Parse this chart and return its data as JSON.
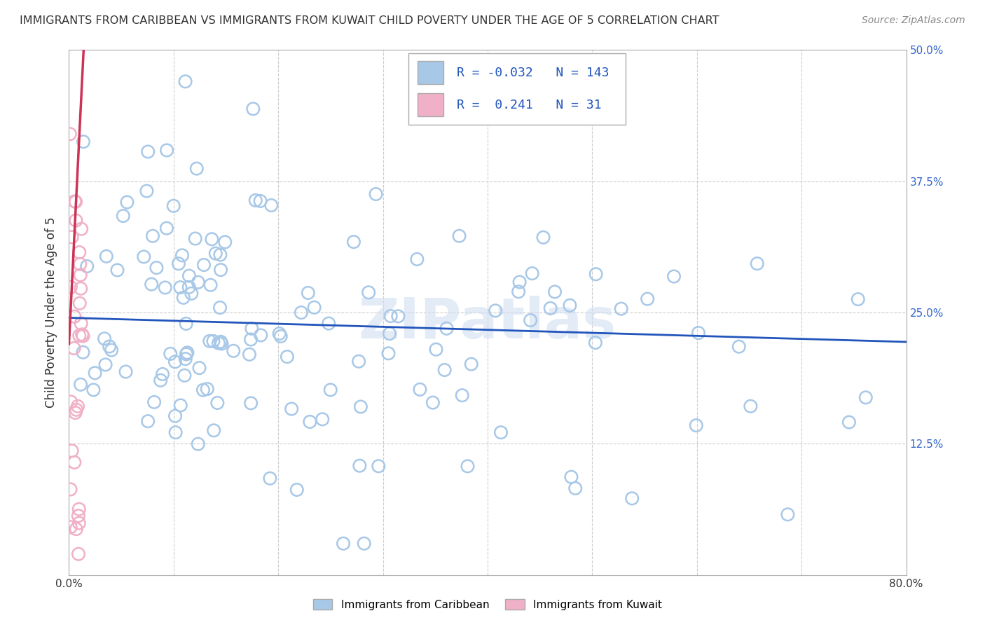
{
  "title": "IMMIGRANTS FROM CARIBBEAN VS IMMIGRANTS FROM KUWAIT CHILD POVERTY UNDER THE AGE OF 5 CORRELATION CHART",
  "source": "Source: ZipAtlas.com",
  "ylabel": "Child Poverty Under the Age of 5",
  "xlim": [
    0.0,
    0.8
  ],
  "ylim": [
    0.0,
    0.5
  ],
  "xticks": [
    0.0,
    0.1,
    0.2,
    0.3,
    0.4,
    0.5,
    0.6,
    0.7,
    0.8
  ],
  "yticks": [
    0.0,
    0.125,
    0.25,
    0.375,
    0.5
  ],
  "yticklabels": [
    "",
    "12.5%",
    "25.0%",
    "37.5%",
    "50.0%"
  ],
  "caribbean_color": "#a8c8e8",
  "kuwait_color": "#f0b0c8",
  "trend_caribbean_color": "#2255bb",
  "trend_kuwait_color": "#cc3355",
  "R_caribbean": -0.032,
  "N_caribbean": 143,
  "R_kuwait": 0.241,
  "N_kuwait": 31,
  "watermark": "ZIPatlas",
  "background_color": "#ffffff",
  "grid_color": "#cccccc",
  "title_fontsize": 11.5,
  "source_fontsize": 10,
  "tick_fontsize": 11,
  "ylabel_fontsize": 12,
  "legend_fontsize": 13
}
